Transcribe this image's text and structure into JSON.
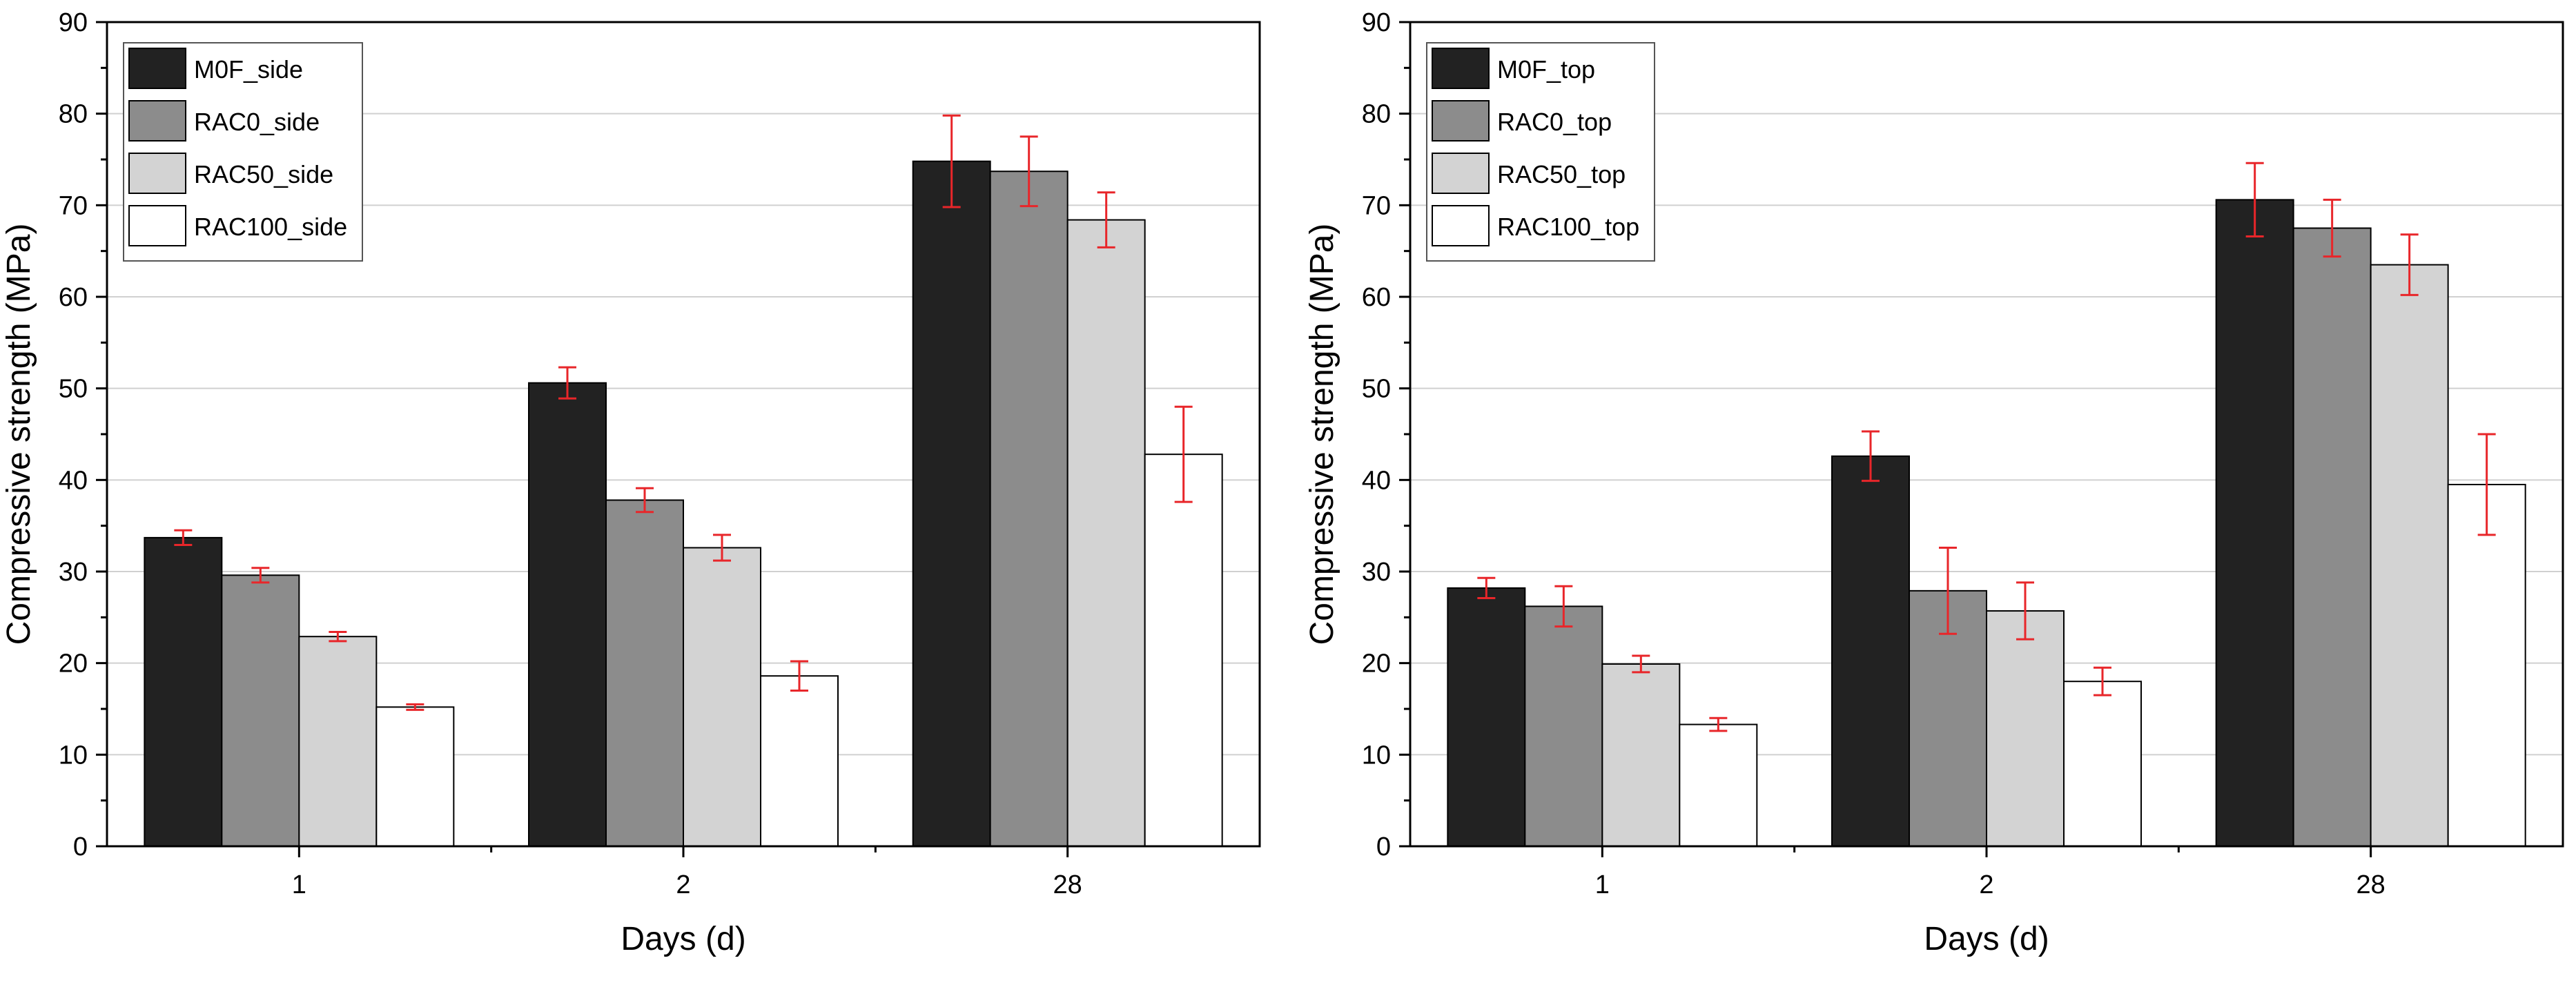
{
  "chart_data": [
    {
      "type": "bar",
      "panel": "left",
      "categories": [
        "1",
        "2",
        "28"
      ],
      "xlabel": "Days (d)",
      "ylabel": "Compressive strength (MPa)",
      "ylim": [
        0,
        90
      ],
      "yticks": [
        0,
        10,
        20,
        30,
        40,
        50,
        60,
        70,
        80,
        90
      ],
      "grid": true,
      "legend_position": "top-left",
      "series": [
        {
          "name": "M0F_side",
          "values": [
            33.7,
            50.6,
            74.8
          ],
          "errors": [
            0.8,
            1.7,
            5.0
          ]
        },
        {
          "name": "RAC0_side",
          "values": [
            29.6,
            37.8,
            73.7
          ],
          "errors": [
            0.8,
            1.3,
            3.8
          ]
        },
        {
          "name": "RAC50_side",
          "values": [
            22.9,
            32.6,
            68.4
          ],
          "errors": [
            0.5,
            1.4,
            3.0
          ]
        },
        {
          "name": "RAC100_side",
          "values": [
            15.2,
            18.6,
            42.8
          ],
          "errors": [
            0.3,
            1.6,
            5.2
          ]
        }
      ]
    },
    {
      "type": "bar",
      "panel": "right",
      "categories": [
        "1",
        "2",
        "28"
      ],
      "xlabel": "Days (d)",
      "ylabel": "Compressive strength (MPa)",
      "ylim": [
        0,
        90
      ],
      "yticks": [
        0,
        10,
        20,
        30,
        40,
        50,
        60,
        70,
        80,
        90
      ],
      "grid": true,
      "legend_position": "top-left",
      "series": [
        {
          "name": "M0F_top",
          "values": [
            28.2,
            42.6,
            70.6
          ],
          "errors": [
            1.1,
            2.7,
            4.0
          ]
        },
        {
          "name": "RAC0_top",
          "values": [
            26.2,
            27.9,
            67.5
          ],
          "errors": [
            2.2,
            4.7,
            3.1
          ]
        },
        {
          "name": "RAC50_top",
          "values": [
            19.9,
            25.7,
            63.5
          ],
          "errors": [
            0.9,
            3.1,
            3.3
          ]
        },
        {
          "name": "RAC100_top",
          "values": [
            13.3,
            18.0,
            39.5
          ],
          "errors": [
            0.7,
            1.5,
            5.5
          ]
        }
      ]
    }
  ],
  "style": {
    "series_fills": [
      "#222222",
      "#8c8c8c",
      "#d3d3d3",
      "#ffffff"
    ],
    "bar_stroke": "#000000",
    "error_color": "#e8262a",
    "grid_color": "#d0d0d0",
    "axis_color": "#000000"
  }
}
